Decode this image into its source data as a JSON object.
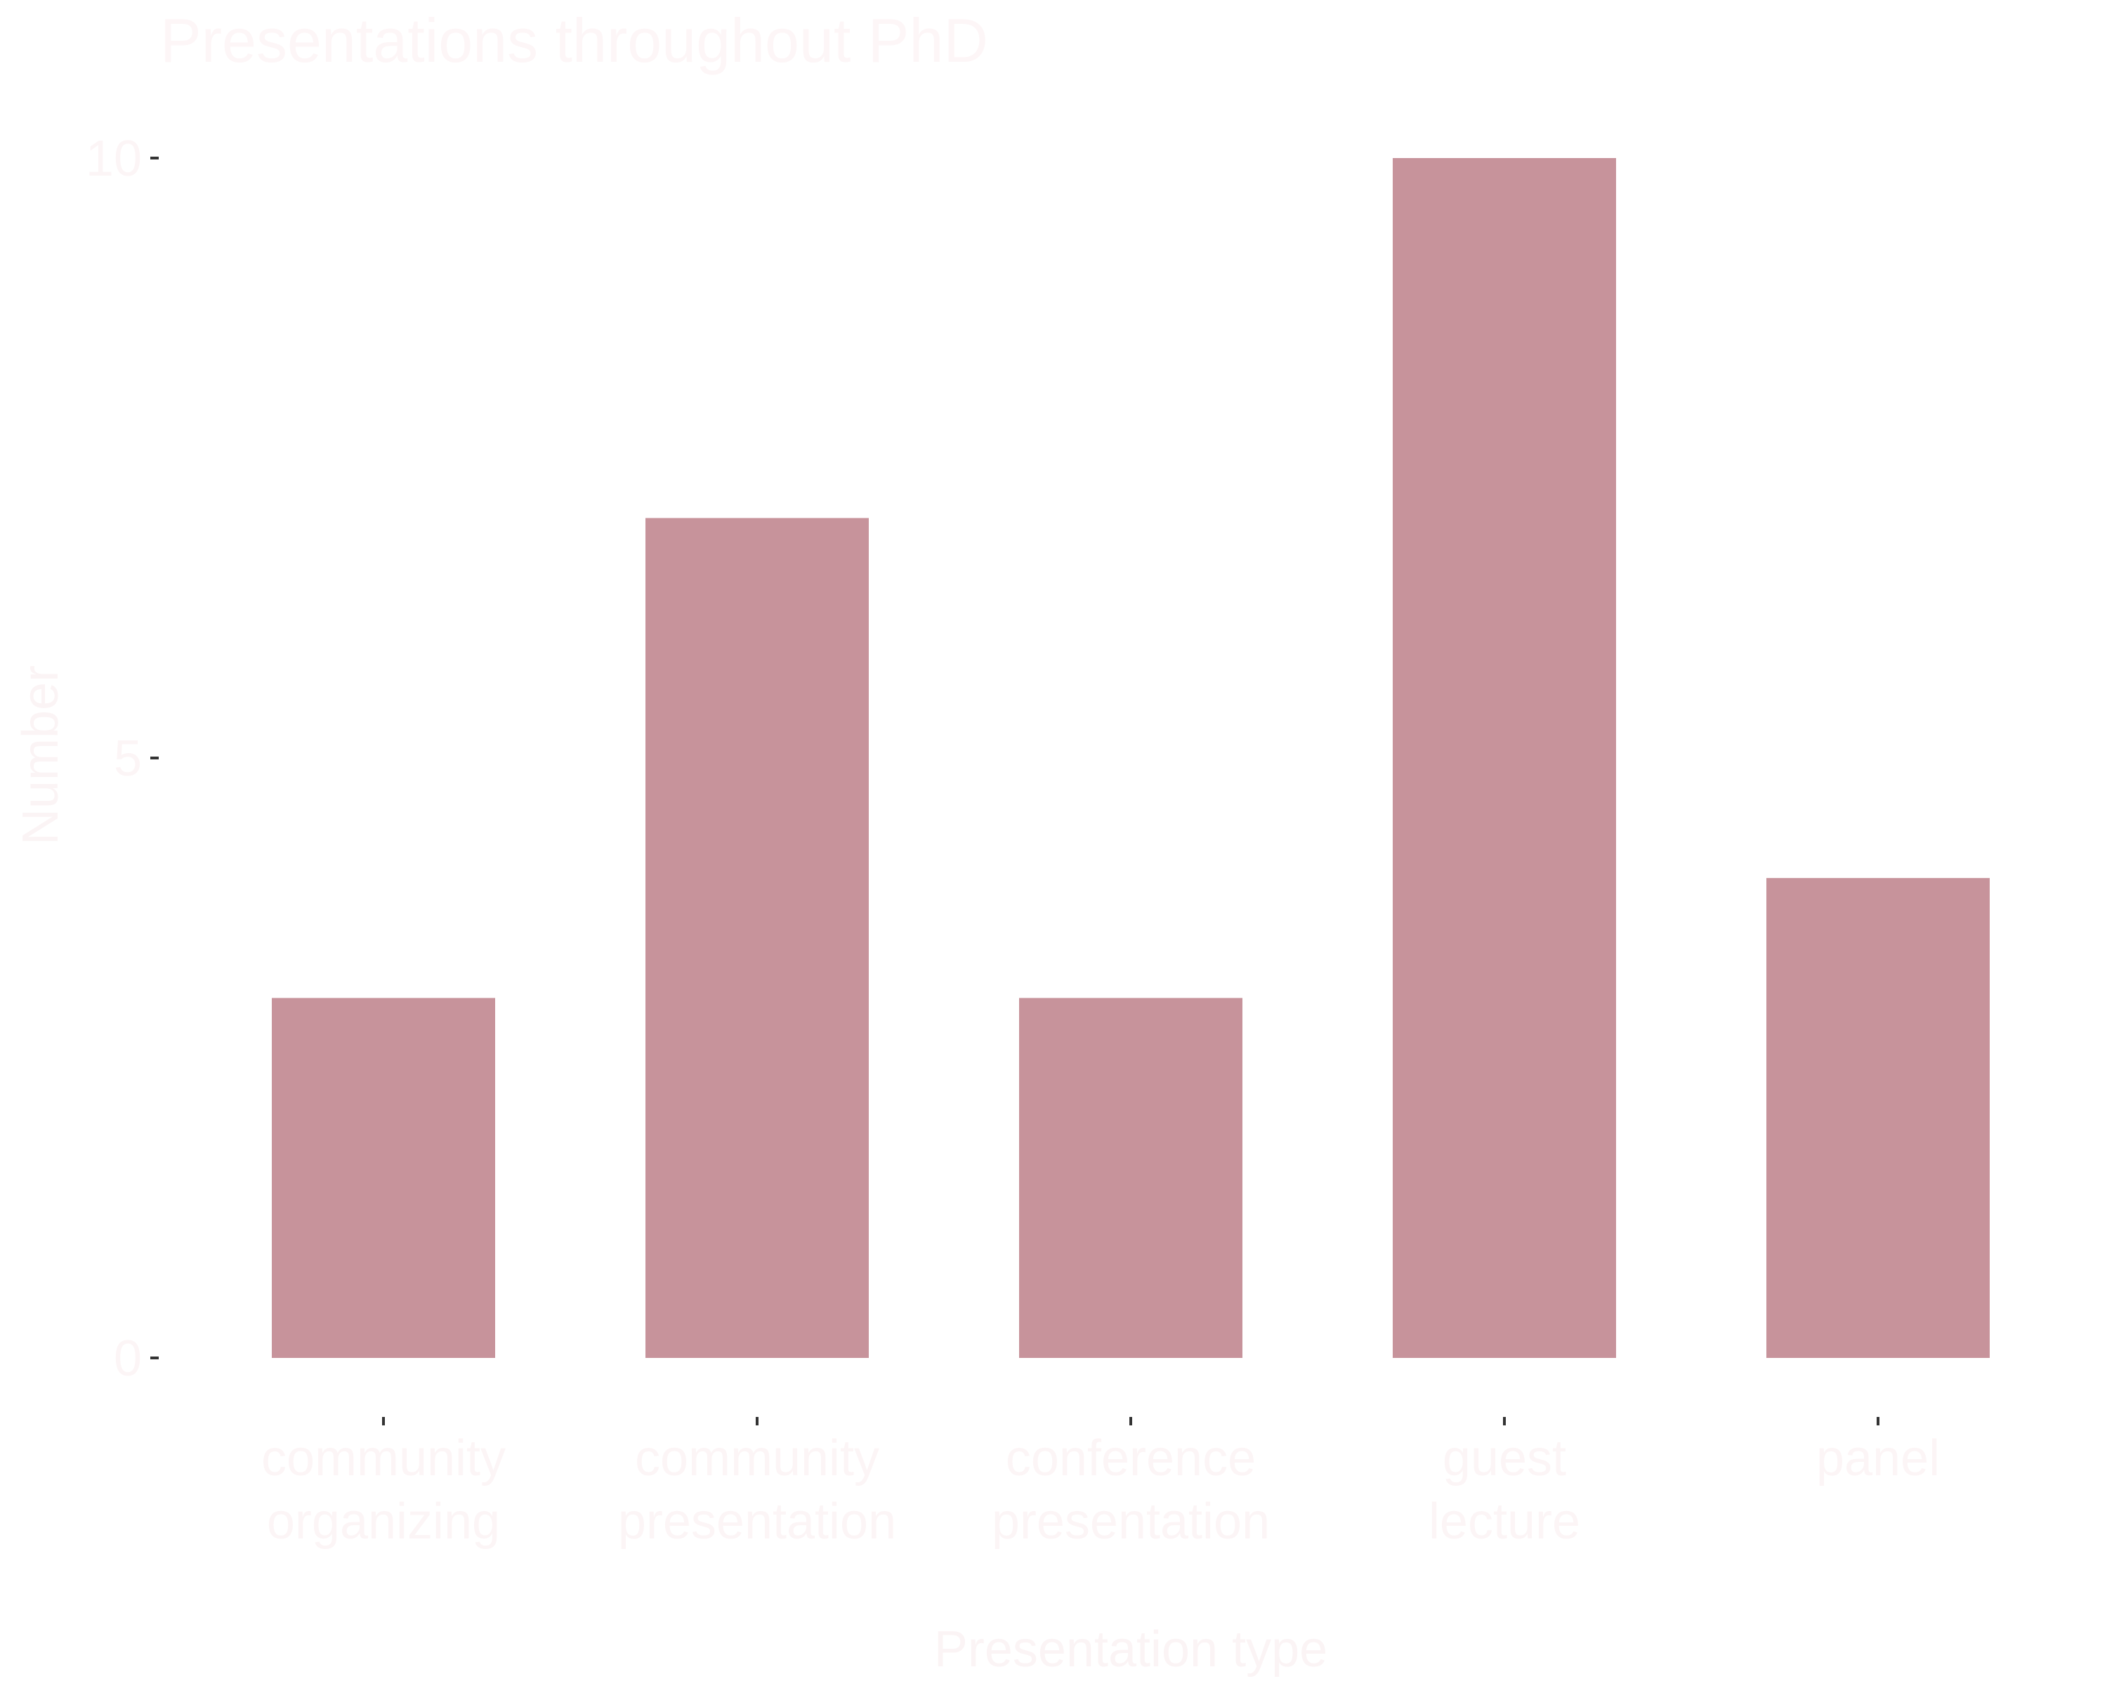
{
  "chart_data": {
    "type": "bar",
    "title": "Presentations throughout PhD",
    "xlabel": "Presentation type",
    "ylabel": "Number",
    "categories": [
      [
        "community",
        "organizing"
      ],
      [
        "community",
        "presentation"
      ],
      [
        "conference",
        "presentation"
      ],
      [
        "guest",
        "lecture"
      ],
      [
        "panel"
      ]
    ],
    "values": [
      3,
      7,
      3,
      10,
      4
    ],
    "ylim": [
      0,
      10
    ],
    "yticks": [
      "0",
      "5",
      "10"
    ],
    "grid": false,
    "legend": "none",
    "colors": {
      "bar": "#c7939b",
      "text": "#fcf5f6",
      "tick": "#333333",
      "background": "#ffffff"
    }
  }
}
